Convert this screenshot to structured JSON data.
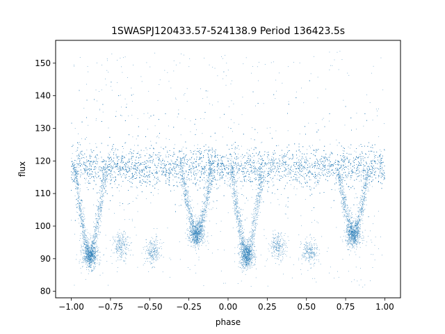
{
  "chart_data": {
    "type": "scatter",
    "title": "1SWASPJ120433.57-524138.9 Period 136423.5s",
    "xlabel": "phase",
    "ylabel": "flux",
    "xlim": [
      -1.1,
      1.1
    ],
    "ylim": [
      78,
      157
    ],
    "x_ticks": [
      -1.0,
      -0.75,
      -0.5,
      -0.25,
      0.0,
      0.25,
      0.5,
      0.75,
      1.0
    ],
    "x_tick_labels": [
      "−1.00",
      "−0.75",
      "−0.50",
      "−0.25",
      "0.00",
      "0.25",
      "0.50",
      "0.75",
      "1.00"
    ],
    "y_ticks": [
      80,
      90,
      100,
      110,
      120,
      130,
      140,
      150
    ],
    "y_tick_labels": [
      "80",
      "90",
      "100",
      "110",
      "120",
      "130",
      "140",
      "150"
    ],
    "grid": false,
    "marker_color": "#1f77b4",
    "baseline_flux": 118,
    "baseline_scatter": 2.8,
    "primary_eclipses": [
      {
        "phase": -0.88,
        "min_flux": 90
      },
      {
        "phase": 0.12,
        "min_flux": 90
      }
    ],
    "secondary_eclipses": [
      {
        "phase": -0.2,
        "min_flux": 96.5
      },
      {
        "phase": 0.8,
        "min_flux": 96.5
      }
    ],
    "minor_clumps": [
      {
        "phase": -0.48,
        "flux": 92
      },
      {
        "phase": 0.52,
        "flux": 92
      },
      {
        "phase": -0.68,
        "flux": 94
      },
      {
        "phase": 0.32,
        "flux": 94
      }
    ],
    "phase_range": [
      -1.0,
      1.0
    ]
  }
}
